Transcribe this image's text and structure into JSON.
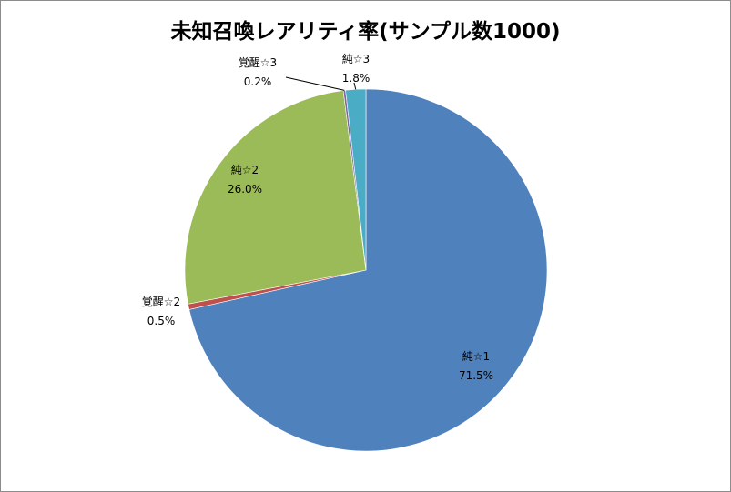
{
  "chart_data": {
    "type": "pie",
    "title": "未知召喚レアリティ率(サンプル数1000)",
    "slices": [
      {
        "name": "純☆1",
        "value": 71.5,
        "label": "71.5%",
        "color": "#4f81bd"
      },
      {
        "name": "覚醒☆2",
        "value": 0.5,
        "label": "0.5%",
        "color": "#c0504d"
      },
      {
        "name": "純☆2",
        "value": 26.0,
        "label": "26.0%",
        "color": "#9bbb59"
      },
      {
        "name": "覚醒☆3",
        "value": 0.2,
        "label": "0.2%",
        "color": "#8064a2"
      },
      {
        "name": "純☆3",
        "value": 1.8,
        "label": "1.8%",
        "color": "#4bacc6"
      }
    ],
    "start_direction": "top",
    "direction": "clockwise",
    "legend": "none"
  }
}
